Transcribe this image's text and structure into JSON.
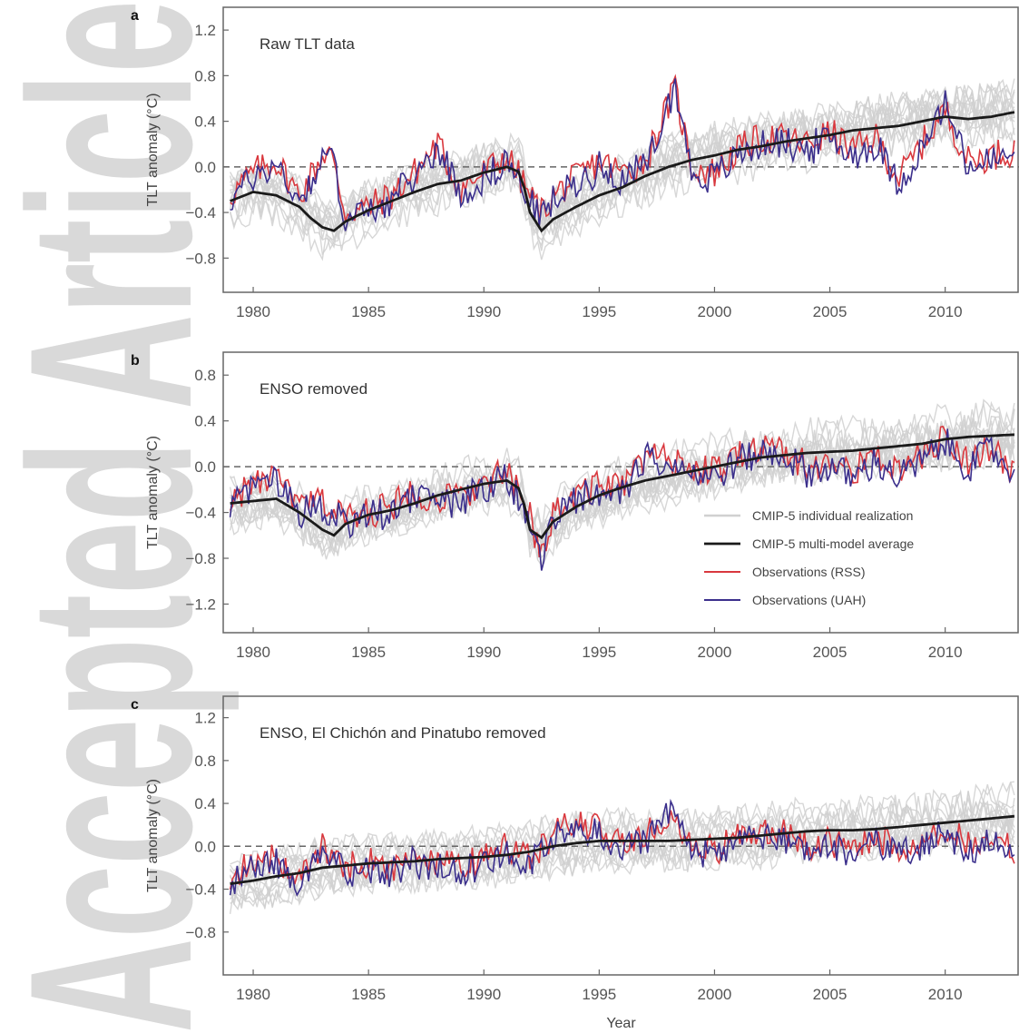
{
  "watermark": {
    "text": "Accepted Article",
    "color": "#d9d9d9"
  },
  "colors": {
    "individual": "#d0d0d0",
    "multimodel": "#1a1a1a",
    "rss": "#d9383e",
    "uah": "#3b2f8c",
    "zero_line": "#666666",
    "axis": "#666666"
  },
  "shared": {
    "xlabel": "Year",
    "ylabel": "TLT anomaly (°C)",
    "x_ticks": [
      1980,
      1985,
      1990,
      1995,
      2000,
      2005,
      2010
    ],
    "xlim": [
      1978.7,
      2013.2
    ]
  },
  "legend": {
    "items": [
      {
        "key": "individual",
        "label": "CMIP-5 individual realization"
      },
      {
        "key": "multimodel",
        "label": "CMIP-5 multi-model average"
      },
      {
        "key": "rss",
        "label": "Observations (RSS)"
      },
      {
        "key": "uah",
        "label": "Observations (UAH)"
      }
    ]
  },
  "chart_data": [
    {
      "type": "line",
      "panel": "a",
      "title": "Raw TLT data",
      "xlabel": "",
      "ylabel": "TLT anomaly (°C)",
      "ylim": [
        -1.1,
        1.4
      ],
      "y_ticks": [
        -0.8,
        -0.4,
        0.0,
        0.4,
        0.8,
        1.2
      ],
      "y_tick_labels": [
        "−0.8",
        "−0.4",
        "0.0",
        "0.4",
        "0.8",
        "1.2"
      ],
      "series": [
        {
          "name": "CMIP-5 multi-model average",
          "x": [
            1979,
            1980,
            1981,
            1982,
            1982.5,
            1983,
            1983.5,
            1984,
            1985,
            1986,
            1987,
            1988,
            1989,
            1990,
            1991,
            1991.6,
            1992,
            1992.5,
            1993,
            1994,
            1995,
            1996,
            1997,
            1998,
            1999,
            2000,
            2001,
            2002,
            2003,
            2004,
            2005,
            2006,
            2007,
            2008,
            2009,
            2010,
            2011,
            2012,
            2013
          ],
          "values": [
            -0.3,
            -0.22,
            -0.25,
            -0.35,
            -0.45,
            -0.53,
            -0.56,
            -0.48,
            -0.38,
            -0.3,
            -0.22,
            -0.15,
            -0.12,
            -0.05,
            0.0,
            -0.05,
            -0.4,
            -0.56,
            -0.46,
            -0.35,
            -0.25,
            -0.18,
            -0.08,
            0.0,
            0.06,
            0.1,
            0.15,
            0.18,
            0.22,
            0.25,
            0.28,
            0.32,
            0.34,
            0.36,
            0.4,
            0.44,
            0.42,
            0.44,
            0.48
          ]
        },
        {
          "name": "Observations (RSS)",
          "x": [
            1979,
            1980,
            1981,
            1982,
            1983,
            1983.3,
            1984,
            1985,
            1986,
            1987,
            1988,
            1989,
            1990,
            1991,
            1992,
            1992.5,
            1993,
            1994,
            1995,
            1996,
            1997,
            1998,
            1998.3,
            1999,
            2000,
            2001,
            2002,
            2003,
            2004,
            2005,
            2006,
            2007,
            2008,
            2009,
            2010,
            2011,
            2012,
            2013
          ],
          "values": [
            -0.25,
            -0.05,
            0.05,
            -0.25,
            0.1,
            0.15,
            -0.4,
            -0.35,
            -0.25,
            -0.05,
            0.2,
            -0.2,
            -0.05,
            0.1,
            -0.25,
            -0.4,
            -0.25,
            -0.1,
            0.05,
            -0.05,
            0.05,
            0.55,
            0.68,
            0.0,
            -0.05,
            0.15,
            0.25,
            0.25,
            0.2,
            0.3,
            0.15,
            0.25,
            -0.1,
            0.2,
            0.5,
            0.05,
            0.1,
            0.15
          ]
        },
        {
          "name": "Observations (UAH)",
          "x": [
            1979,
            1980,
            1981,
            1982,
            1983,
            1983.3,
            1984,
            1985,
            1986,
            1987,
            1988,
            1989,
            1990,
            1991,
            1992,
            1992.5,
            1993,
            1994,
            1995,
            1996,
            1997,
            1998,
            1998.3,
            1999,
            2000,
            2001,
            2002,
            2003,
            2004,
            2005,
            2006,
            2007,
            2008,
            2009,
            2010,
            2011,
            2012,
            2013
          ],
          "values": [
            -0.3,
            -0.08,
            0.02,
            -0.3,
            0.05,
            0.18,
            -0.45,
            -0.4,
            -0.3,
            -0.1,
            0.18,
            -0.25,
            -0.1,
            0.05,
            -0.3,
            -0.45,
            -0.3,
            -0.15,
            0.0,
            -0.1,
            0.0,
            0.55,
            0.72,
            -0.05,
            -0.1,
            0.1,
            0.2,
            0.22,
            0.15,
            0.25,
            0.1,
            0.2,
            -0.15,
            0.15,
            0.55,
            0.0,
            0.05,
            0.1
          ]
        }
      ]
    },
    {
      "type": "line",
      "panel": "b",
      "title": "ENSO removed",
      "xlabel": "",
      "ylabel": "TLT anomaly (°C)",
      "ylim": [
        -1.45,
        1.0
      ],
      "y_ticks": [
        -1.2,
        -0.8,
        -0.4,
        0.0,
        0.4,
        0.8
      ],
      "y_tick_labels": [
        "−1.2",
        "−0.8",
        "−0.4",
        "0.0",
        "0.4",
        "0.8"
      ],
      "series": [
        {
          "name": "CMIP-5 multi-model average",
          "x": [
            1979,
            1980,
            1981,
            1982,
            1983,
            1983.5,
            1984,
            1985,
            1986,
            1987,
            1988,
            1989,
            1990,
            1991,
            1991.6,
            1992,
            1992.5,
            1993,
            1994,
            1995,
            1996,
            1997,
            1998,
            1999,
            2000,
            2001,
            2002,
            2003,
            2004,
            2005,
            2006,
            2007,
            2008,
            2009,
            2010,
            2011,
            2012,
            2013
          ],
          "values": [
            -0.32,
            -0.3,
            -0.28,
            -0.4,
            -0.55,
            -0.6,
            -0.5,
            -0.42,
            -0.38,
            -0.32,
            -0.25,
            -0.2,
            -0.15,
            -0.12,
            -0.2,
            -0.55,
            -0.62,
            -0.48,
            -0.35,
            -0.25,
            -0.18,
            -0.12,
            -0.08,
            -0.04,
            0.0,
            0.04,
            0.08,
            0.1,
            0.12,
            0.13,
            0.14,
            0.16,
            0.18,
            0.2,
            0.24,
            0.26,
            0.27,
            0.28
          ]
        },
        {
          "name": "Observations (RSS)",
          "x": [
            1979,
            1980,
            1981,
            1982,
            1983,
            1984,
            1985,
            1986,
            1987,
            1988,
            1989,
            1990,
            1991,
            1992,
            1992.5,
            1993,
            1994,
            1995,
            1996,
            1997,
            1998,
            1999,
            2000,
            2001,
            2002,
            2003,
            2004,
            2005,
            2006,
            2007,
            2008,
            2009,
            2010,
            2011,
            2012,
            2013
          ],
          "values": [
            -0.3,
            -0.15,
            -0.1,
            -0.35,
            -0.3,
            -0.45,
            -0.4,
            -0.35,
            -0.2,
            -0.3,
            -0.25,
            -0.15,
            -0.05,
            -0.45,
            -0.75,
            -0.4,
            -0.25,
            -0.15,
            -0.2,
            0.1,
            0.05,
            0.0,
            -0.05,
            0.1,
            0.15,
            0.15,
            0.0,
            0.05,
            -0.05,
            0.1,
            -0.05,
            0.1,
            0.25,
            0.05,
            0.2,
            -0.1
          ]
        },
        {
          "name": "Observations (UAH)",
          "x": [
            1979,
            1980,
            1981,
            1982,
            1983,
            1984,
            1985,
            1986,
            1987,
            1988,
            1989,
            1990,
            1991,
            1992,
            1992.5,
            1993,
            1994,
            1995,
            1996,
            1997,
            1998,
            1999,
            2000,
            2001,
            2002,
            2003,
            2004,
            2005,
            2006,
            2007,
            2008,
            2009,
            2010,
            2011,
            2012,
            2013
          ],
          "values": [
            -0.35,
            -0.2,
            -0.12,
            -0.4,
            -0.35,
            -0.5,
            -0.45,
            -0.4,
            -0.25,
            -0.35,
            -0.3,
            -0.2,
            -0.08,
            -0.5,
            -0.8,
            -0.45,
            -0.3,
            -0.2,
            -0.25,
            0.05,
            0.1,
            -0.05,
            -0.1,
            0.05,
            0.12,
            0.1,
            -0.05,
            0.0,
            -0.1,
            0.05,
            -0.1,
            0.05,
            0.2,
            0.0,
            0.15,
            -0.05
          ]
        }
      ]
    },
    {
      "type": "line",
      "panel": "c",
      "title": "ENSO, El Chichón and Pinatubo removed",
      "xlabel": "Year",
      "ylabel": "TLT anomaly (°C)",
      "ylim": [
        -1.2,
        1.4
      ],
      "y_ticks": [
        -0.8,
        -0.4,
        0.0,
        0.4,
        0.8,
        1.2
      ],
      "y_tick_labels": [
        "−0.8",
        "−0.4",
        "0.0",
        "0.4",
        "0.8",
        "1.2"
      ],
      "series": [
        {
          "name": "CMIP-5 multi-model average",
          "x": [
            1979,
            1980,
            1981,
            1982,
            1983,
            1984,
            1985,
            1986,
            1987,
            1988,
            1989,
            1990,
            1991,
            1992,
            1993,
            1994,
            1995,
            1996,
            1997,
            1998,
            1999,
            2000,
            2001,
            2002,
            2003,
            2004,
            2005,
            2006,
            2007,
            2008,
            2009,
            2010,
            2011,
            2012,
            2013
          ],
          "values": [
            -0.35,
            -0.32,
            -0.28,
            -0.25,
            -0.2,
            -0.18,
            -0.16,
            -0.15,
            -0.14,
            -0.12,
            -0.11,
            -0.1,
            -0.08,
            -0.05,
            0.0,
            0.03,
            0.05,
            0.05,
            0.05,
            0.05,
            0.06,
            0.07,
            0.08,
            0.1,
            0.12,
            0.14,
            0.15,
            0.15,
            0.16,
            0.18,
            0.2,
            0.22,
            0.24,
            0.26,
            0.28
          ]
        },
        {
          "name": "Observations (RSS)",
          "x": [
            1979,
            1980,
            1981,
            1982,
            1983,
            1984,
            1985,
            1986,
            1987,
            1988,
            1989,
            1990,
            1991,
            1992,
            1993,
            1994,
            1995,
            1996,
            1997,
            1998,
            1999,
            2000,
            2001,
            2002,
            2003,
            2004,
            2005,
            2006,
            2007,
            2008,
            2009,
            2010,
            2011,
            2012,
            2013
          ],
          "values": [
            -0.3,
            -0.15,
            -0.1,
            -0.3,
            0.0,
            -0.2,
            -0.15,
            -0.2,
            -0.1,
            -0.15,
            -0.2,
            -0.1,
            0.0,
            -0.1,
            0.1,
            0.25,
            0.15,
            0.05,
            0.1,
            0.25,
            0.05,
            -0.05,
            0.1,
            0.15,
            0.15,
            0.0,
            0.05,
            -0.05,
            0.1,
            -0.05,
            0.05,
            0.2,
            0.0,
            0.15,
            -0.05
          ]
        },
        {
          "name": "Observations (UAH)",
          "x": [
            1979,
            1980,
            1981,
            1982,
            1983,
            1984,
            1985,
            1986,
            1987,
            1988,
            1989,
            1990,
            1991,
            1992,
            1993,
            1994,
            1995,
            1996,
            1997,
            1998,
            1999,
            2000,
            2001,
            2002,
            2003,
            2004,
            2005,
            2006,
            2007,
            2008,
            2009,
            2010,
            2011,
            2012,
            2013
          ],
          "values": [
            -0.35,
            -0.2,
            -0.15,
            -0.35,
            -0.05,
            -0.25,
            -0.2,
            -0.25,
            -0.15,
            -0.2,
            -0.25,
            -0.15,
            -0.05,
            -0.15,
            0.05,
            0.2,
            0.1,
            0.0,
            0.05,
            0.3,
            0.0,
            -0.1,
            0.05,
            0.1,
            0.1,
            -0.05,
            0.0,
            -0.1,
            0.05,
            -0.1,
            0.0,
            0.15,
            -0.05,
            0.1,
            -0.1
          ]
        }
      ]
    }
  ]
}
